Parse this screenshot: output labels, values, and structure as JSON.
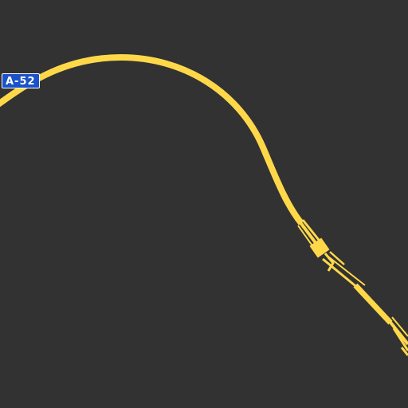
{
  "map": {
    "background_color": "#323232",
    "road_color": "#ffd84a",
    "road_shield": {
      "label": "A-52",
      "background_color": "#1a52c7",
      "text_color": "#ffffff"
    },
    "features": [
      "highway-road",
      "highway-junction",
      "road-shield"
    ]
  }
}
